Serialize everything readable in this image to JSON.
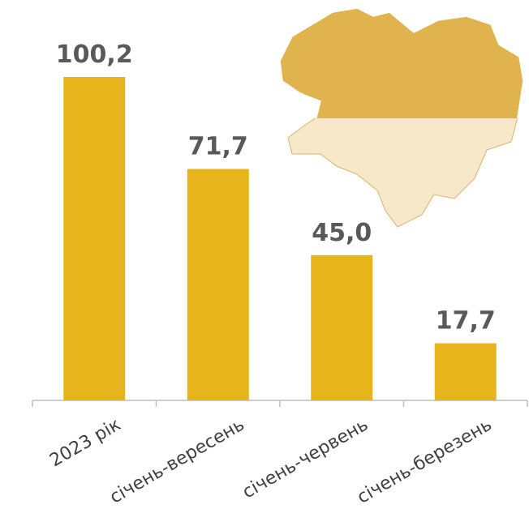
{
  "chart_data": {
    "type": "bar",
    "categories": [
      "2023 рік",
      "січень-вересень",
      "січень-червень",
      "січень-березень"
    ],
    "values": [
      100.2,
      71.7,
      45.0,
      17.7
    ],
    "value_labels": [
      "100,2",
      "71,7",
      "45,0",
      "17,7"
    ],
    "color": "#e8b41b"
  }
}
